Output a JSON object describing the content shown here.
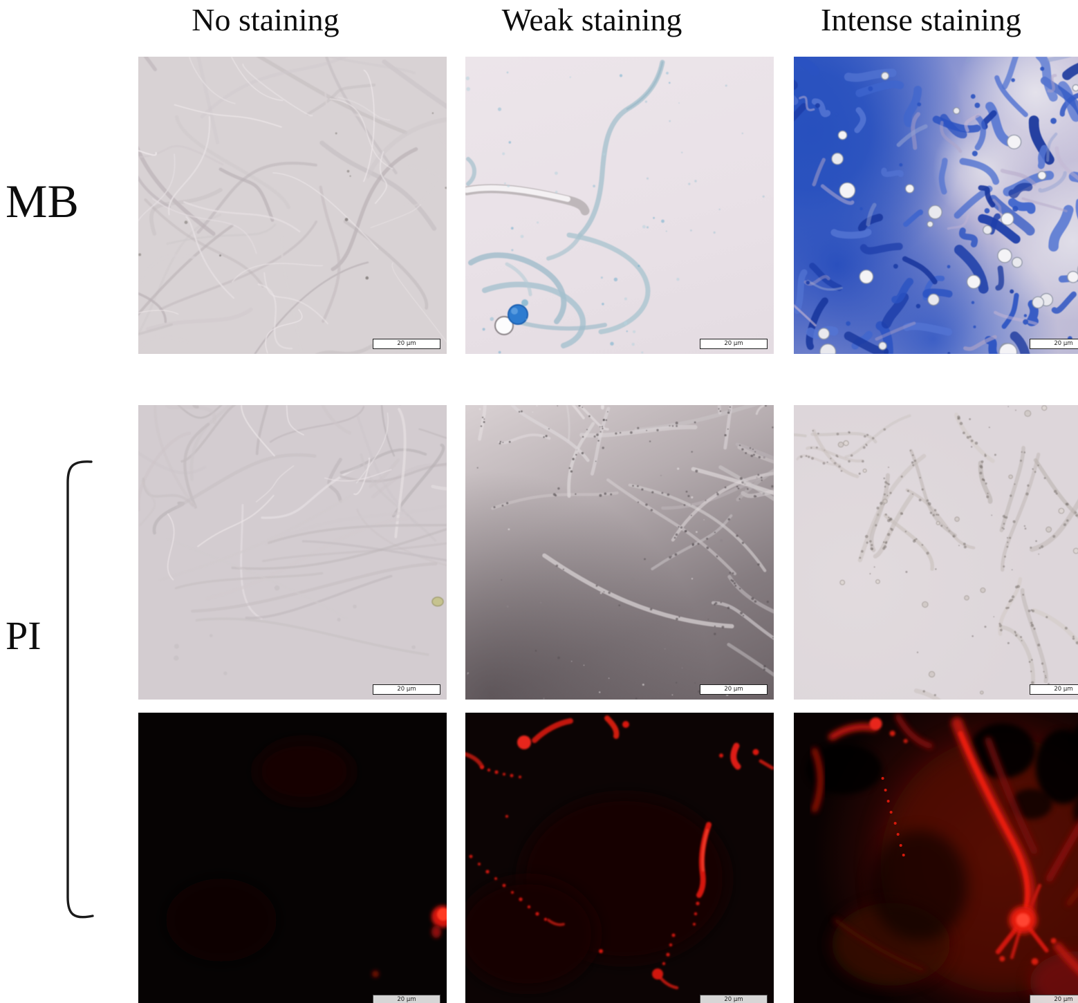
{
  "figure": {
    "columns": [
      {
        "label": "No staining"
      },
      {
        "label": "Weak staining"
      },
      {
        "label": "Intense staining"
      }
    ],
    "row_groups": [
      {
        "label": "MB",
        "description": "Methylene blue staining, brightfield micrographs"
      },
      {
        "label": "PI",
        "description": "Propidium iodide staining; paired brightfield and red-fluorescence micrographs"
      }
    ],
    "scale_bar": {
      "label": "20 μm"
    },
    "panels": [
      {
        "id": "mb-no",
        "row": "MB",
        "column": "No staining",
        "modality": "brightfield",
        "appearance": "dense unstained hyaline hyphal network on pale grey background"
      },
      {
        "id": "mb-weak",
        "row": "MB",
        "column": "Weak staining",
        "modality": "brightfield",
        "appearance": "sparse hyphae with faint blue tint, one bright blue sphere and one clear sphere at lower left, pale pink background"
      },
      {
        "id": "mb-intense",
        "row": "MB",
        "column": "Intense staining",
        "modality": "brightfield",
        "appearance": "dense deep-blue stained hyphae and cells with clear round vesicles"
      },
      {
        "id": "pi-bf-no",
        "row": "PI",
        "column": "No staining",
        "modality": "brightfield",
        "appearance": "unstained hyphae, dense at top with long strands sweeping below"
      },
      {
        "id": "pi-bf-weak",
        "row": "PI",
        "column": "Weak staining",
        "modality": "brightfield",
        "appearance": "granular hyphae on grey background darkening toward bottom"
      },
      {
        "id": "pi-bf-intense",
        "row": "PI",
        "column": "Intense staining",
        "modality": "brightfield",
        "appearance": "granular degraded hyphae concentrated at centre-right on pale pink background"
      },
      {
        "id": "pi-fl-no",
        "row": "PI",
        "column": "No staining",
        "modality": "fluorescence",
        "appearance": "black field with one small red spot at right edge and a tiny dot below"
      },
      {
        "id": "pi-fl-weak",
        "row": "PI",
        "column": "Weak staining",
        "modality": "fluorescence",
        "appearance": "dark field with scattered weak red hyphal fragments and dotted trails"
      },
      {
        "id": "pi-fl-intense",
        "row": "PI",
        "column": "Intense staining",
        "modality": "fluorescence",
        "appearance": "strong diffuse red fluorescence with bright diagonal hyphal streaks and dark voids"
      }
    ],
    "colors": {
      "methylene_blue": "#2a52c2",
      "weak_stain_blue": "#a9c3cf",
      "pi_red": "#e01610",
      "page_background": "#ffffff",
      "label_color": "#0e0e0e"
    }
  }
}
